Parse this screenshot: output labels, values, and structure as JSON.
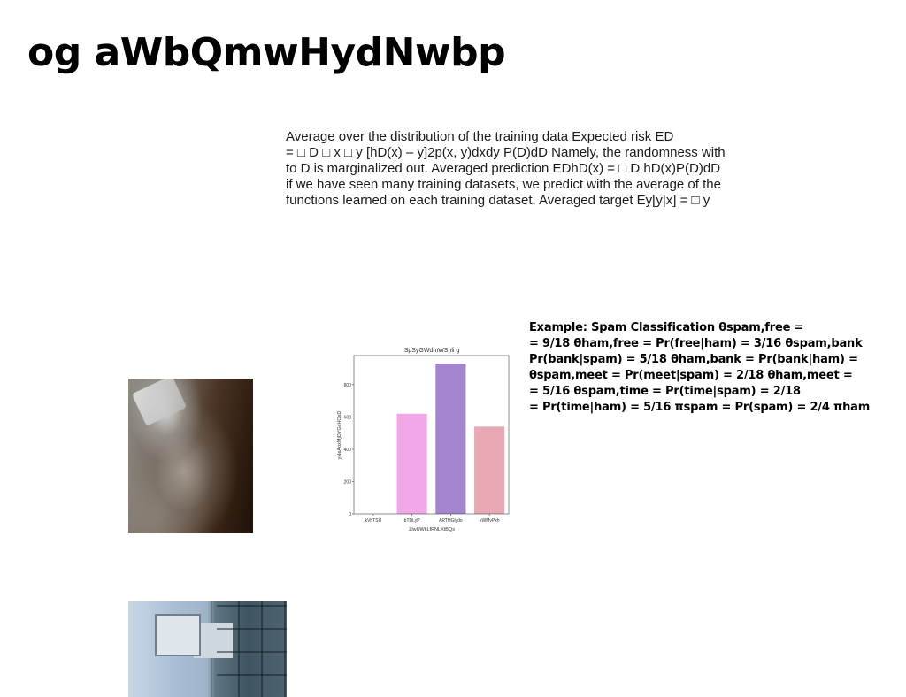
{
  "page": {
    "title": "og aWbQmwHydNwbp"
  },
  "body_text": "Average over the distribution of the training data Expected risk ED\n= □ D □ x □ y [hD(x) – y]2p(x, y)dxdy P(D)dD Namely, the randomness with\nto D is marginalized out. Averaged prediction EDhD(x) = □ D hD(x)P(D)dD\nif we have seen many training datasets, we predict with the average of the\nfunctions learned on each training dataset. Averaged target Ey[y|x] = □ y",
  "example_text": "Example: Spam Classification θspam,free =\n= 9/18 θham,free = Pr(free|ham) = 3/16 θspam,bank\nPr(bank|spam) = 5/18 θham,bank = Pr(bank|ham) =\nθspam,meet = Pr(meet|spam) = 2/18 θham,meet =\n= 5/16 θspam,time = Pr(time|spam) = 2/18\n= Pr(time|ham) = 5/16 πspam = Pr(spam) = 2/4 πham",
  "chart_data": {
    "type": "bar",
    "title": "SpSyGWdmWShli g",
    "xlabel": "ZlwUWkLfRNLXtBQs",
    "ylabel": "yNeAoxMjDYGcHOsD",
    "categories": [
      "kVhTSU",
      "bTDLyP",
      "ARTHGlydo",
      "eWMvPxh"
    ],
    "values": [
      0,
      620,
      930,
      540
    ],
    "colors": [
      "#9ec9e8",
      "#f0a8e8",
      "#a285cc",
      "#e8a8b4"
    ],
    "ylim": [
      0,
      980
    ],
    "yticks": [
      0,
      200,
      400,
      600,
      800
    ],
    "grid": false
  }
}
